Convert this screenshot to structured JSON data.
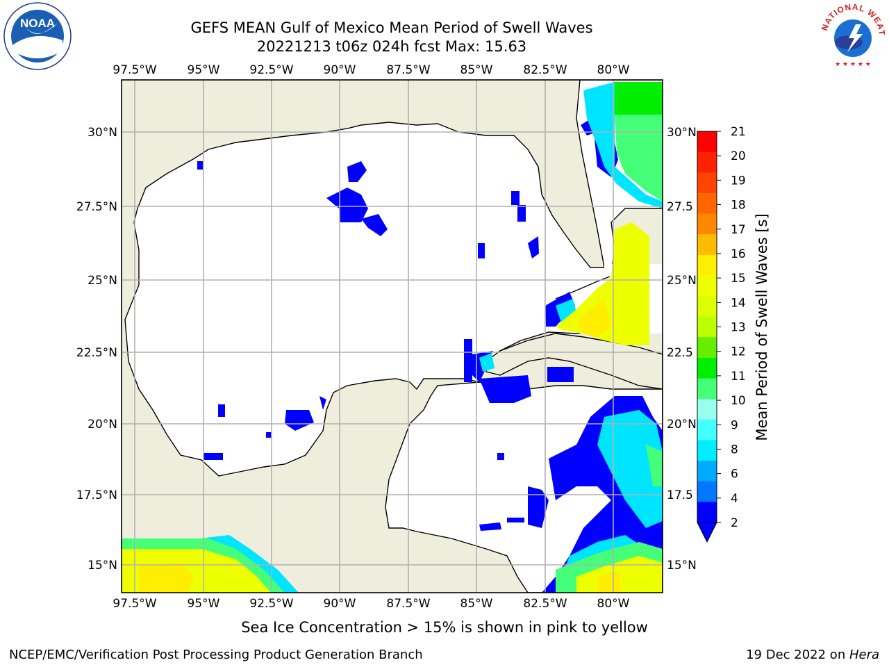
{
  "header": {
    "title_line1": "GEFS MEAN Gulf of Mexico Mean Period of Swell Waves",
    "title_line2": "20221213 t06z 024h fcst   Max: 15.63"
  },
  "logos": {
    "left": "NOAA",
    "left_ring_text": "NATIONAL OCEANIC AND ATMOSPHERIC ADMINISTRATION · U.S. DEPARTMENT OF COMMERCE",
    "right_ring_text": "NATIONAL WEATHER SERVICE"
  },
  "map": {
    "lon_labels": [
      "97.5°W",
      "95°W",
      "92.5°W",
      "90°W",
      "87.5°W",
      "85°W",
      "82.5°W",
      "80°W"
    ],
    "lat_labels_left": [
      "30°N",
      "27.5°N",
      "25°N",
      "22.5°N",
      "20°N",
      "17.5°N",
      "15°N"
    ],
    "lat_labels_right": [
      "30°N",
      "27.5",
      "25°N",
      "22.5",
      "20°N",
      "17.5",
      "15°N"
    ],
    "colors": {
      "land": "#efeedd",
      "ocean": "#ffffff",
      "grid": "#b0b0b0"
    }
  },
  "colorbar": {
    "label": "Mean Period of Swell Waves [s]",
    "ticks": [
      "21",
      "20",
      "19",
      "18",
      "17",
      "16",
      "15",
      "14",
      "13",
      "12",
      "11",
      "10",
      "9",
      "8",
      "6",
      "4",
      "2"
    ],
    "colors": [
      "#ff0000",
      "#ff2200",
      "#ff4400",
      "#ff6600",
      "#ff8800",
      "#ffbb00",
      "#ffee00",
      "#eeff00",
      "#ddff00",
      "#bbff00",
      "#66ee00",
      "#00ee00",
      "#44ff77",
      "#99ffee",
      "#44ffff",
      "#00eeff",
      "#00aaff",
      "#0077ff",
      "#0000ff"
    ]
  },
  "notes": {
    "ice": "Sea Ice Concentration > 15% is shown in pink to yellow"
  },
  "footer": {
    "left": "NCEP/EMC/Verification Post Processing Product Generation Branch",
    "right_prefix": "19 Dec 2022 on ",
    "right_host": "Hera"
  }
}
